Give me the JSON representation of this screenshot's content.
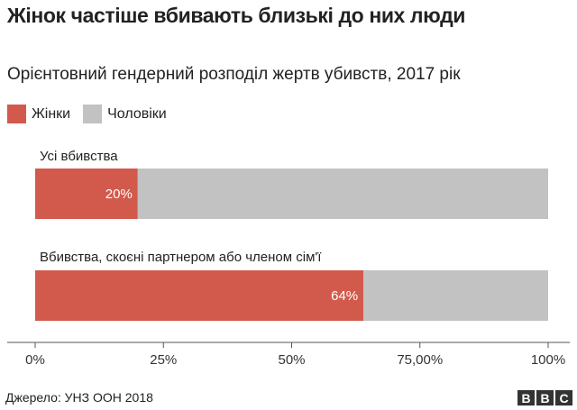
{
  "chart_data": {
    "type": "bar",
    "orientation": "horizontal",
    "stacked": true,
    "title": "Жінок частіше вбивають близькі до них люди",
    "subtitle": "Орієнтовний гендерний розподіл жертв убивств, 2017 рік",
    "categories": [
      "Усі вбивства",
      "Вбивства, скоєні партнером або членом сім'ї"
    ],
    "series": [
      {
        "name": "Жінки",
        "values": [
          20,
          64
        ],
        "labels": [
          "20%",
          "64%"
        ],
        "color": "#d25a4c"
      },
      {
        "name": "Чоловіки",
        "values": [
          80,
          36
        ],
        "color": "#c2c2c2"
      }
    ],
    "x_ticks": [
      {
        "value": 0,
        "label": "0%"
      },
      {
        "value": 25,
        "label": "25%"
      },
      {
        "value": 50,
        "label": "50%"
      },
      {
        "value": 75,
        "label": "75,00%"
      },
      {
        "value": 100,
        "label": "100%"
      }
    ],
    "xlim": [
      0,
      100
    ],
    "legend_position": "top-left",
    "grid": false
  },
  "footer": {
    "source": "Джерело: УНЗ ООН 2018",
    "logo": [
      "B",
      "B",
      "C"
    ]
  }
}
